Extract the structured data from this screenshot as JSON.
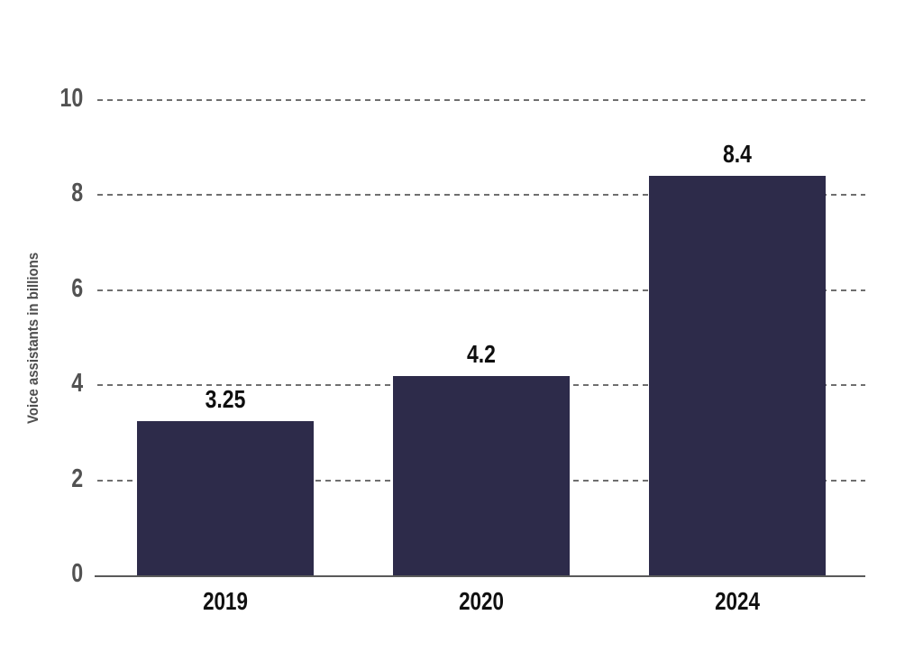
{
  "chart_data": {
    "type": "bar",
    "categories": [
      "2019",
      "2020",
      "2024"
    ],
    "values": [
      3.25,
      4.2,
      8.4
    ],
    "value_labels": [
      "3.25",
      "4.2",
      "8.4"
    ],
    "title": "",
    "xlabel": "",
    "ylabel": "Voice assistants in billions",
    "ylim": [
      0,
      10
    ],
    "yticks": [
      0,
      2,
      4,
      6,
      8,
      10
    ],
    "grid": "horizontal-dashed",
    "legend": "none",
    "colors": {
      "bar": "#2d2b4a",
      "value_label": "#0e0e0e",
      "category_label": "#101010",
      "tick_label": "#525252",
      "axis_title": "#4f4f4f",
      "gridline": "#6f6f6f",
      "axis_line": "#5a5a5a",
      "background": "#ffffff"
    }
  }
}
